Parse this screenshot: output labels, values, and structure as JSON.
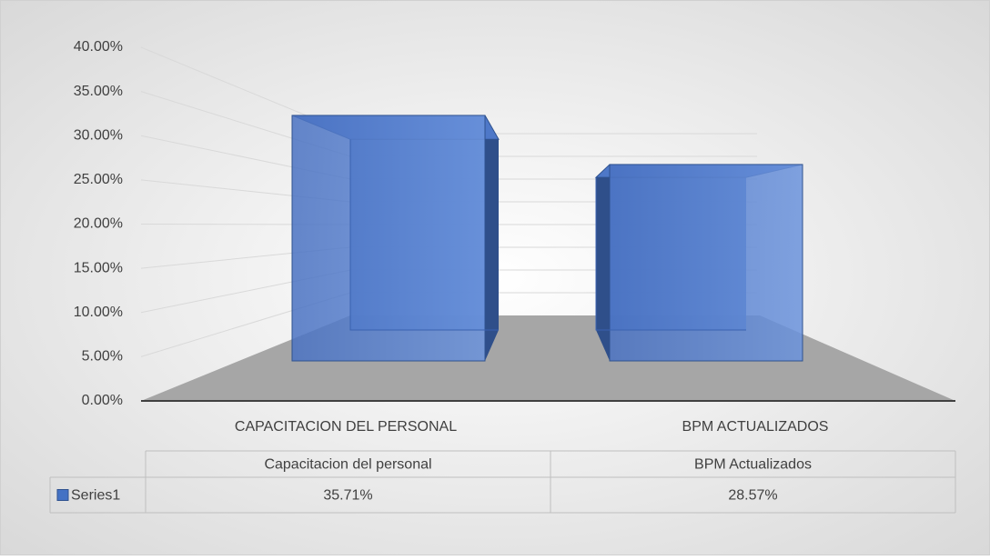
{
  "chart_data": {
    "type": "bar3d",
    "categories": [
      "CAPACITACION DEL PERSONAL",
      "BPM ACTUALIZADOS"
    ],
    "table_categories": [
      "Capacitacion del personal",
      "BPM Actualizados"
    ],
    "series": [
      {
        "name": "Series1",
        "color": "#4472c4",
        "values": [
          35.71,
          28.57
        ],
        "value_labels": [
          "35.71%",
          "28.57%"
        ]
      }
    ],
    "ylim": [
      0,
      40
    ],
    "yticks": [
      {
        "value": 0,
        "label": "0.00%"
      },
      {
        "value": 5,
        "label": "5.00%"
      },
      {
        "value": 10,
        "label": "10.00%"
      },
      {
        "value": 15,
        "label": "15.00%"
      },
      {
        "value": 20,
        "label": "20.00%"
      },
      {
        "value": 25,
        "label": "25.00%"
      },
      {
        "value": 30,
        "label": "30.00%"
      },
      {
        "value": 35,
        "label": "35.00%"
      },
      {
        "value": 40,
        "label": "40.00%"
      }
    ],
    "grid": true
  }
}
